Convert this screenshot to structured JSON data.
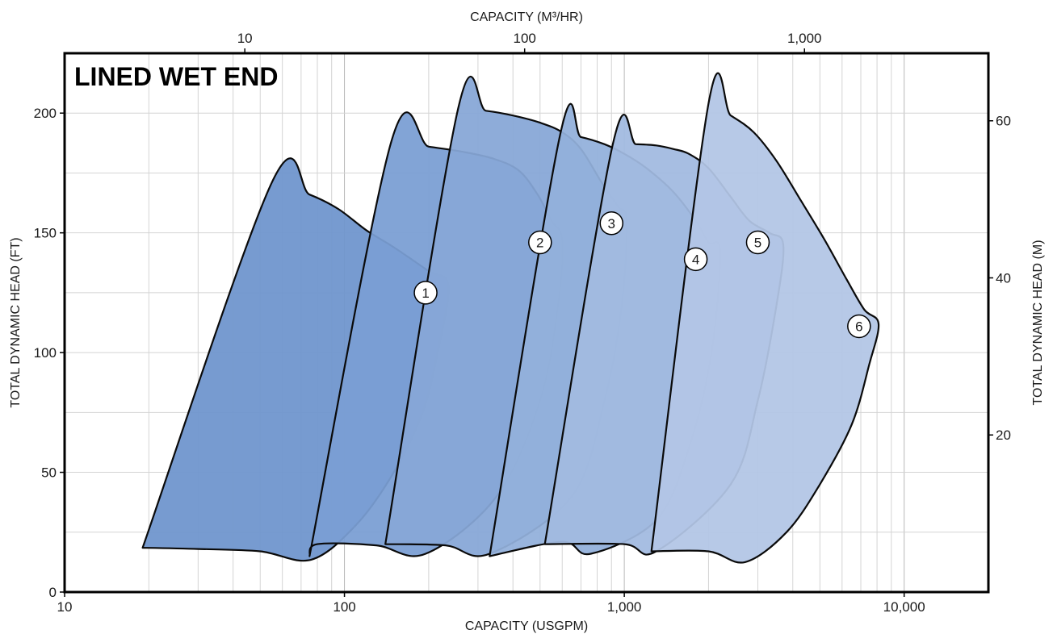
{
  "chart_data": {
    "type": "area",
    "title": "LINED WET END",
    "xlabel": "CAPACITY (USGPM)",
    "x2label": "CAPACITY (M³/HR)",
    "ylabel": "TOTAL DYNAMIC HEAD (FT)",
    "y2label": "TOTAL DYNAMIC HEAD (M)",
    "x_scale": "log",
    "xlim": [
      10,
      20000
    ],
    "ylim": [
      0,
      225
    ],
    "x2lim": [
      2.27,
      4542
    ],
    "y2lim": [
      0,
      68.6
    ],
    "grid": true,
    "x_ticks": [
      {
        "value": 10,
        "label": "10"
      },
      {
        "value": 100,
        "label": "100"
      },
      {
        "value": 1000,
        "label": "1,000"
      },
      {
        "value": 10000,
        "label": "10,000"
      }
    ],
    "y_ticks": [
      {
        "value": 0,
        "label": "0"
      },
      {
        "value": 50,
        "label": "50"
      },
      {
        "value": 100,
        "label": "100"
      },
      {
        "value": 150,
        "label": "150"
      },
      {
        "value": 200,
        "label": "200"
      }
    ],
    "x2_ticks": [
      {
        "value": 10,
        "label": "10"
      },
      {
        "value": 100,
        "label": "100"
      },
      {
        "value": 1000,
        "label": "1,000"
      }
    ],
    "y2_ticks": [
      {
        "value": 20,
        "label": "20"
      },
      {
        "value": 40,
        "label": "40"
      },
      {
        "value": 60,
        "label": "60"
      }
    ],
    "series": [
      {
        "name": "1",
        "color": "#6e95cd",
        "points": [
          [
            19,
            18.5
          ],
          [
            55,
            171
          ],
          [
            75,
            166
          ],
          [
            95,
            160
          ],
          [
            120,
            151
          ],
          [
            150,
            144
          ],
          [
            200,
            134
          ],
          [
            235,
            128
          ],
          [
            215,
            100
          ],
          [
            190,
            75
          ],
          [
            150,
            50
          ],
          [
            110,
            28
          ],
          [
            76,
            13.5
          ],
          [
            50,
            17
          ],
          [
            30,
            18
          ],
          [
            19,
            18.5
          ]
        ]
      },
      {
        "name": "2",
        "color": "#7a9ed3",
        "points": [
          [
            75,
            15
          ],
          [
            147,
            188
          ],
          [
            200,
            186
          ],
          [
            260,
            184
          ],
          [
            340,
            181
          ],
          [
            420,
            176
          ],
          [
            490,
            166
          ],
          [
            550,
            155
          ],
          [
            600,
            147
          ],
          [
            580,
            120
          ],
          [
            500,
            80
          ],
          [
            350,
            40
          ],
          [
            195,
            16
          ],
          [
            130,
            19.5
          ],
          [
            80,
            20
          ],
          [
            75,
            15
          ]
        ]
      },
      {
        "name": "3",
        "color": "#87a7d7",
        "points": [
          [
            140,
            20
          ],
          [
            255,
            202
          ],
          [
            320,
            201
          ],
          [
            400,
            199
          ],
          [
            500,
            196
          ],
          [
            600,
            192
          ],
          [
            700,
            185
          ],
          [
            830,
            171
          ],
          [
            950,
            161
          ],
          [
            1020,
            155
          ],
          [
            980,
            120
          ],
          [
            850,
            80
          ],
          [
            650,
            40
          ],
          [
            330,
            16
          ],
          [
            230,
            19.5
          ],
          [
            140,
            20
          ]
        ]
      },
      {
        "name": "4",
        "color": "#93b0db",
        "points": [
          [
            330,
            15
          ],
          [
            590,
            191
          ],
          [
            700,
            190
          ],
          [
            850,
            187
          ],
          [
            1000,
            183
          ],
          [
            1200,
            177
          ],
          [
            1500,
            167
          ],
          [
            1800,
            155
          ],
          [
            2000,
            146
          ],
          [
            2200,
            142
          ],
          [
            2050,
            100
          ],
          [
            1700,
            60
          ],
          [
            1300,
            30
          ],
          [
            760,
            16
          ],
          [
            600,
            21
          ],
          [
            330,
            15
          ]
        ]
      },
      {
        "name": "5",
        "color": "#a1bae0",
        "points": [
          [
            520,
            20
          ],
          [
            910,
            187
          ],
          [
            1100,
            187
          ],
          [
            1300,
            186.5
          ],
          [
            1500,
            185
          ],
          [
            1700,
            183
          ],
          [
            2000,
            177
          ],
          [
            2400,
            165
          ],
          [
            2800,
            155
          ],
          [
            3300,
            150
          ],
          [
            3700,
            145
          ],
          [
            3500,
            120
          ],
          [
            3000,
            80
          ],
          [
            2400,
            45
          ],
          [
            1300,
            17
          ],
          [
            1000,
            20
          ],
          [
            520,
            20
          ]
        ]
      },
      {
        "name": "6",
        "color": "#b3c6e6",
        "points": [
          [
            1250,
            17
          ],
          [
            2000,
            204
          ],
          [
            2400,
            199
          ],
          [
            2900,
            192
          ],
          [
            3500,
            180
          ],
          [
            4300,
            163
          ],
          [
            5200,
            147
          ],
          [
            6200,
            131
          ],
          [
            7200,
            118
          ],
          [
            8100,
            112
          ],
          [
            7500,
            95
          ],
          [
            6500,
            70
          ],
          [
            5000,
            45
          ],
          [
            3800,
            25
          ],
          [
            2700,
            12.5
          ],
          [
            2000,
            17
          ],
          [
            1250,
            17
          ]
        ]
      }
    ],
    "labels": [
      {
        "text": "1",
        "x": 195,
        "y": 125
      },
      {
        "text": "2",
        "x": 500,
        "y": 146
      },
      {
        "text": "3",
        "x": 900,
        "y": 154
      },
      {
        "text": "4",
        "x": 1800,
        "y": 139
      },
      {
        "text": "5",
        "x": 3000,
        "y": 146
      },
      {
        "text": "6",
        "x": 6900,
        "y": 111
      }
    ]
  }
}
